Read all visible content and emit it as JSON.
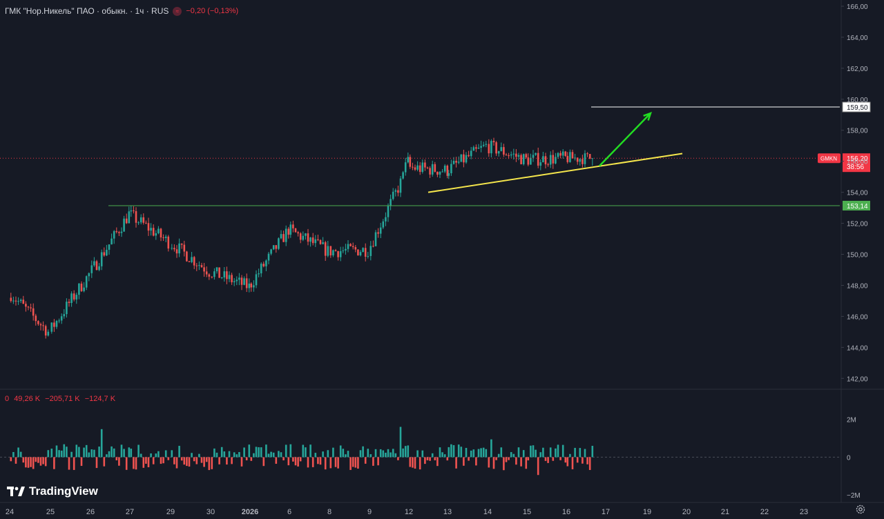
{
  "header": {
    "title": "ГМК \"Нор.Никель\" ПАО · обыкн. · 1ч · RUS",
    "status_icon": "≈",
    "change": "−0,20 (−0,13%)"
  },
  "volume_legend": [
    "0",
    "49,26 K",
    "−205,71 K",
    "−124,7 K"
  ],
  "brand": {
    "name": "TradingView"
  },
  "colors": {
    "background": "#161a25",
    "up": "#26a69a",
    "down": "#ef5350",
    "trend_support": "#f5e64c",
    "arrow": "#22dd22",
    "level_support": "#4caf50",
    "level_target": "#ffffff",
    "price_label": "#f23645"
  },
  "chart_data": {
    "type": "candlestick",
    "symbol": "GMKN",
    "interval": "1h",
    "y_axis": {
      "range": [
        141.3,
        166.4
      ],
      "ticks": [
        "166,00",
        "164,00",
        "162,00",
        "160,00",
        "158,00",
        "156,00",
        "154,00",
        "152,00",
        "150,00",
        "148,00",
        "146,00",
        "144,00",
        "142,00"
      ]
    },
    "x_axis": {
      "labels": [
        "24",
        "25",
        "26",
        "27",
        "29",
        "30",
        "2026",
        "6",
        "8",
        "9",
        "12",
        "13",
        "14",
        "15",
        "16",
        "17",
        "19",
        "20",
        "21",
        "22",
        "23"
      ]
    },
    "session_anchors": [
      {
        "label": "24",
        "close": 147.6
      },
      {
        "label": "25",
        "close": 145.0
      },
      {
        "label": "26",
        "close": 148.7
      },
      {
        "label": "27",
        "close": 152.6
      },
      {
        "label": "29",
        "close": 150.8
      },
      {
        "label": "30",
        "close": 148.9
      },
      {
        "label": "2026",
        "close": 147.9
      },
      {
        "label": "6",
        "close": 151.6
      },
      {
        "label": "8",
        "close": 150.2
      },
      {
        "label": "9",
        "close": 150.3
      },
      {
        "label": "12",
        "close": 155.6
      },
      {
        "label": "13",
        "close": 155.4
      },
      {
        "label": "14",
        "close": 157.0
      },
      {
        "label": "15",
        "close": 156.1
      },
      {
        "label": "16",
        "close": 156.2
      }
    ],
    "last_price": {
      "label": "156,20",
      "countdown": "38:56",
      "symbol": "GMKN"
    },
    "levels": [
      {
        "label": "159,50",
        "price": 159.5,
        "role": "target"
      },
      {
        "label": "153,14",
        "price": 153.14,
        "role": "support"
      }
    ],
    "annotations": {
      "trendline": {
        "from_price": 154.0,
        "to_price": 156.5
      },
      "arrow": {
        "from_price": 155.7,
        "to_price": 159.1
      }
    },
    "volume": {
      "type": "bar",
      "axis_ticks": [
        "2M",
        "0",
        "−2M"
      ],
      "range": [
        -2.4,
        3.6
      ],
      "unit": "M"
    }
  }
}
